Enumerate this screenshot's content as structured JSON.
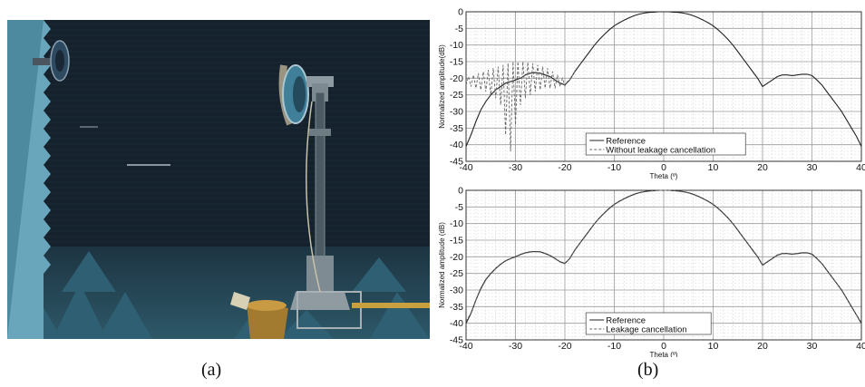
{
  "captions": {
    "a": "(a)",
    "b": "(b)"
  },
  "colors": {
    "wall": "#15212c",
    "absorber": "#4d8aa0",
    "reference": "#222222",
    "comparison": "#666666"
  },
  "chart_data": [
    {
      "type": "line",
      "title": "",
      "xlabel": "Theta (º)",
      "ylabel": "Normalized amplitude(dB)",
      "xlim": [
        -40,
        40
      ],
      "ylim": [
        -45,
        0
      ],
      "xticks": [
        -40,
        -30,
        -20,
        -10,
        0,
        10,
        20,
        30,
        40
      ],
      "yticks": [
        0,
        -5,
        -10,
        -15,
        -20,
        -25,
        -30,
        -35,
        -40,
        -45
      ],
      "grid": true,
      "legend_position": "bottom-center",
      "series": [
        {
          "name": "Reference",
          "style": "solid",
          "x": [
            -40,
            -39,
            -38,
            -37,
            -36,
            -35,
            -34,
            -33,
            -32,
            -31,
            -30,
            -29,
            -28,
            -27,
            -26,
            -25,
            -24,
            -23,
            -22,
            -21,
            -20,
            -19,
            -18,
            -17,
            -16,
            -15,
            -14,
            -13,
            -12,
            -11,
            -10,
            -9,
            -8,
            -7,
            -6,
            -5,
            -4,
            -3,
            -2,
            -1,
            0,
            1,
            2,
            3,
            4,
            5,
            6,
            7,
            8,
            9,
            10,
            11,
            12,
            13,
            14,
            15,
            16,
            17,
            18,
            19,
            20,
            21,
            22,
            23,
            24,
            25,
            26,
            27,
            28,
            29,
            30,
            31,
            32,
            33,
            34,
            35,
            36,
            37,
            38,
            39,
            40
          ],
          "y": [
            -40.5,
            -37,
            -33,
            -29.5,
            -27,
            -25,
            -23.5,
            -22.5,
            -21.5,
            -21,
            -20.5,
            -20,
            -19,
            -18.5,
            -18.3,
            -18.5,
            -19,
            -19.5,
            -20.5,
            -21.5,
            -22,
            -20.5,
            -18,
            -16,
            -14,
            -12,
            -10,
            -8.3,
            -6.8,
            -5.4,
            -4.2,
            -3.3,
            -2.5,
            -1.8,
            -1.2,
            -0.7,
            -0.4,
            -0.2,
            -0.1,
            0,
            0,
            0,
            -0.1,
            -0.2,
            -0.4,
            -0.7,
            -1.2,
            -1.8,
            -2.5,
            -3.3,
            -4.2,
            -5.4,
            -6.8,
            -8.3,
            -10,
            -12,
            -14,
            -16,
            -18,
            -20,
            -22.5,
            -21.5,
            -20.5,
            -19.5,
            -19,
            -19,
            -19.2,
            -19,
            -18.8,
            -18.8,
            -19.2,
            -20.5,
            -22,
            -24,
            -26,
            -28,
            -30,
            -32.5,
            -35,
            -37.5,
            -40.5
          ]
        },
        {
          "name": "Without leakage cancellation",
          "style": "dashed",
          "x": [
            -40,
            -39.5,
            -39,
            -38.5,
            -38,
            -37.5,
            -37,
            -36.5,
            -36,
            -35.5,
            -35,
            -34.5,
            -34,
            -33.5,
            -33,
            -32.5,
            -32,
            -31.5,
            -31,
            -30.5,
            -30,
            -29.5,
            -29,
            -28.5,
            -28,
            -27.5,
            -27,
            -26.5,
            -26,
            -25.5,
            -25,
            -24.5,
            -24,
            -23.5,
            -23,
            -22.5,
            -22,
            -21.5,
            -21,
            -20.5,
            -20,
            -19.5,
            -19,
            -18
          ],
          "y": [
            -22,
            -19.5,
            -22.5,
            -19,
            -23,
            -18.5,
            -23.5,
            -18,
            -24,
            -17.5,
            -25,
            -17,
            -26,
            -16.5,
            -28,
            -16,
            -37,
            -15.5,
            -42,
            -15,
            -34,
            -15,
            -28,
            -15,
            -26,
            -15.2,
            -25,
            -15.5,
            -24,
            -16,
            -23.5,
            -16.5,
            -23,
            -17,
            -23,
            -18,
            -23,
            -19,
            -22.5,
            -20,
            -22.3,
            -21,
            -20.5,
            -18
          ]
        }
      ]
    },
    {
      "type": "line",
      "title": "",
      "xlabel": "Theta (º)",
      "ylabel": "Normalized amplitude (dB)",
      "xlim": [
        -40,
        40
      ],
      "ylim": [
        -45,
        0
      ],
      "xticks": [
        -40,
        -30,
        -20,
        -10,
        0,
        10,
        20,
        30,
        40
      ],
      "yticks": [
        0,
        -5,
        -10,
        -15,
        -20,
        -25,
        -30,
        -35,
        -40,
        -45
      ],
      "grid": true,
      "legend_position": "bottom-center",
      "series": [
        {
          "name": "Reference",
          "style": "solid",
          "x": [
            -40,
            -39,
            -38,
            -37,
            -36,
            -35,
            -34,
            -33,
            -32,
            -31,
            -30,
            -29,
            -28,
            -27,
            -26,
            -25,
            -24,
            -23,
            -22,
            -21,
            -20,
            -19,
            -18,
            -17,
            -16,
            -15,
            -14,
            -13,
            -12,
            -11,
            -10,
            -9,
            -8,
            -7,
            -6,
            -5,
            -4,
            -3,
            -2,
            -1,
            0,
            1,
            2,
            3,
            4,
            5,
            6,
            7,
            8,
            9,
            10,
            11,
            12,
            13,
            14,
            15,
            16,
            17,
            18,
            19,
            20,
            21,
            22,
            23,
            24,
            25,
            26,
            27,
            28,
            29,
            30,
            31,
            32,
            33,
            34,
            35,
            36,
            37,
            38,
            39,
            40
          ],
          "y": [
            -40,
            -37,
            -33,
            -29.5,
            -26.8,
            -25,
            -23.5,
            -22.2,
            -21.2,
            -20.5,
            -20,
            -19.3,
            -18.8,
            -18.5,
            -18.4,
            -18.5,
            -19,
            -19.6,
            -20.5,
            -21.5,
            -22,
            -20.5,
            -18,
            -16,
            -14,
            -12,
            -10,
            -8.3,
            -6.8,
            -5.4,
            -4.2,
            -3.3,
            -2.5,
            -1.8,
            -1.2,
            -0.7,
            -0.4,
            -0.2,
            -0.1,
            0,
            0,
            0,
            -0.1,
            -0.2,
            -0.4,
            -0.7,
            -1.2,
            -1.8,
            -2.5,
            -3.3,
            -4.2,
            -5.4,
            -6.8,
            -8.3,
            -10,
            -12,
            -14,
            -16,
            -18,
            -20,
            -22.5,
            -21.5,
            -20.5,
            -19.5,
            -19,
            -19,
            -19.2,
            -19,
            -18.8,
            -18.8,
            -19.2,
            -20.5,
            -22,
            -24,
            -26,
            -28,
            -30,
            -32.5,
            -35,
            -37.5,
            -40
          ]
        },
        {
          "name": "Leakage cancellation",
          "style": "dashed",
          "x": [
            -40,
            -39,
            -38,
            -37,
            -36,
            -35,
            -34,
            -33,
            -32,
            -31,
            -30,
            -29,
            -28,
            -27,
            -26,
            -25,
            -24,
            -23,
            -22,
            -21,
            -20,
            -19,
            -18,
            -17,
            -16,
            -15,
            -14,
            -13,
            -12,
            -11,
            -10,
            -9,
            -8,
            -7,
            -6,
            -5,
            -4,
            -3,
            -2,
            -1,
            0,
            1,
            2,
            3,
            4,
            5,
            6,
            7,
            8,
            9,
            10,
            11,
            12,
            13,
            14,
            15,
            16,
            17,
            18,
            19,
            20,
            21,
            22,
            23,
            24,
            25,
            26,
            27,
            28,
            29,
            30,
            31,
            32,
            33,
            34,
            35,
            36,
            37,
            38,
            39,
            40
          ],
          "y": [
            -39.5,
            -36.8,
            -33,
            -29.8,
            -27,
            -25.2,
            -23.6,
            -22.3,
            -21.3,
            -20.6,
            -20.1,
            -19.4,
            -18.9,
            -18.6,
            -18.5,
            -18.6,
            -19.1,
            -19.7,
            -20.6,
            -21.6,
            -22.1,
            -20.6,
            -18.1,
            -16.1,
            -14.1,
            -12.1,
            -10.1,
            -8.4,
            -6.9,
            -5.5,
            -4.3,
            -3.4,
            -2.6,
            -1.9,
            -1.3,
            -0.8,
            -0.5,
            -0.3,
            -0.1,
            0,
            0,
            0,
            -0.1,
            -0.3,
            -0.5,
            -0.8,
            -1.3,
            -1.9,
            -2.6,
            -3.4,
            -4.3,
            -5.5,
            -6.9,
            -8.4,
            -10.1,
            -12.1,
            -14.1,
            -16.1,
            -18.1,
            -20.1,
            -22.6,
            -21.6,
            -20.6,
            -19.6,
            -19.1,
            -19.1,
            -19.3,
            -19.1,
            -18.9,
            -18.9,
            -19.3,
            -20.6,
            -22.1,
            -24.1,
            -26.1,
            -28.1,
            -30.1,
            -32.6,
            -35.1,
            -37.6,
            -40.2
          ]
        }
      ]
    }
  ]
}
